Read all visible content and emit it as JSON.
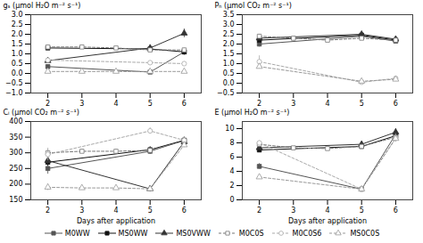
{
  "chart_data": [
    {
      "type": "line",
      "y_label": "gₛ (µmol H₂O m⁻² s⁻¹)",
      "x": [
        2,
        3,
        4,
        5,
        6
      ],
      "xlim": [
        1.5,
        6.5
      ],
      "xticks": [
        2,
        3,
        4,
        5,
        6
      ],
      "ylim": [
        -1.0,
        3.0
      ],
      "yticks": [
        {
          "value": -1.0,
          "label": "−1.0"
        },
        {
          "value": -0.5,
          "label": "−0.5"
        },
        {
          "value": 0.0,
          "label": "0.0"
        },
        {
          "value": 0.5,
          "label": "0.5"
        },
        {
          "value": 1.0,
          "label": "1.0"
        },
        {
          "value": 1.5,
          "label": "1.5"
        },
        {
          "value": 2.0,
          "label": "2.0"
        },
        {
          "value": 2.5,
          "label": "2.5"
        },
        {
          "value": 3.0,
          "label": "3.0"
        }
      ],
      "grid": false,
      "legend": "bottom",
      "series": [
        {
          "name": "M0WW",
          "color": "#555555",
          "marker": "square",
          "line_style": "solid",
          "values": [
            0.35,
            null,
            null,
            0.07,
            1.1
          ],
          "yerr": [
            0.08,
            null,
            null,
            0.05,
            0.18
          ]
        },
        {
          "name": "MS0WW",
          "color": "#111111",
          "marker": "square",
          "line_style": "solid",
          "values": [
            1.3,
            null,
            null,
            1.25,
            1.1
          ],
          "yerr": [
            0.08,
            null,
            null,
            0.08,
            0.12
          ]
        },
        {
          "name": "MS0VWW",
          "color": "#333333",
          "marker": "triangle",
          "line_style": "solid",
          "values": [
            0.65,
            null,
            null,
            1.3,
            2.05
          ],
          "yerr": [
            0.08,
            null,
            null,
            0.1,
            0.22
          ]
        },
        {
          "name": "M0C0S",
          "color": "#777777",
          "marker": "open-square",
          "line_style": "dashed",
          "values": [
            1.35,
            1.35,
            1.3,
            1.2,
            1.2
          ],
          "yerr": [
            0.08,
            0.05,
            0.05,
            0.08,
            0.08
          ]
        },
        {
          "name": "M0C0S6",
          "color": "#aaaaaa",
          "marker": "open-circle",
          "line_style": "dashed",
          "values": [
            0.68,
            null,
            null,
            0.55,
            0.5
          ],
          "yerr": [
            0.08,
            null,
            null,
            0.08,
            0.1
          ]
        },
        {
          "name": "MS0C0S",
          "color": "#999999",
          "marker": "open-triangle",
          "line_style": "dashed",
          "values": [
            0.1,
            0.1,
            0.1,
            0.1,
            0.1
          ],
          "yerr": [
            0.03,
            0.02,
            0.02,
            0.02,
            0.02
          ]
        }
      ]
    },
    {
      "type": "line",
      "y_label": "Pₙ (µmol CO₂ m⁻² s⁻¹)",
      "x": [
        2,
        3,
        4,
        5,
        6
      ],
      "xlim": [
        1.5,
        6.5
      ],
      "xticks": [
        2,
        3,
        4,
        5,
        6
      ],
      "ylim": [
        -0.5,
        3.5
      ],
      "yticks": [
        {
          "value": -0.5,
          "label": "−0.5"
        },
        {
          "value": 0.0,
          "label": "0.0"
        },
        {
          "value": 0.5,
          "label": "0.5"
        },
        {
          "value": 1.0,
          "label": "1.0"
        },
        {
          "value": 1.5,
          "label": "1.5"
        },
        {
          "value": 2.0,
          "label": "2.0"
        },
        {
          "value": 2.5,
          "label": "2.5"
        },
        {
          "value": 3.0,
          "label": "3.0"
        },
        {
          "value": 3.5,
          "label": "3.5"
        }
      ],
      "grid": false,
      "series": [
        {
          "name": "M0WW",
          "color": "#555555",
          "marker": "square",
          "line_style": "solid",
          "values": [
            2.0,
            null,
            null,
            2.4,
            2.15
          ],
          "yerr": [
            0.15,
            null,
            null,
            0.12,
            0.12
          ]
        },
        {
          "name": "MS0WW",
          "color": "#111111",
          "marker": "square",
          "line_style": "solid",
          "values": [
            2.2,
            null,
            null,
            2.45,
            2.2
          ],
          "yerr": [
            0.1,
            null,
            null,
            0.1,
            0.1
          ]
        },
        {
          "name": "MS0VWW",
          "color": "#333333",
          "marker": "triangle",
          "line_style": "solid",
          "values": [
            2.3,
            null,
            null,
            2.5,
            2.25
          ],
          "yerr": [
            0.1,
            null,
            null,
            0.1,
            0.1
          ]
        },
        {
          "name": "M0C0S",
          "color": "#777777",
          "marker": "open-square",
          "line_style": "dashed",
          "values": [
            2.4,
            2.3,
            2.2,
            2.3,
            2.2
          ],
          "yerr": [
            0.1,
            0.08,
            0.08,
            0.1,
            0.1
          ]
        },
        {
          "name": "M0C0S6",
          "color": "#aaaaaa",
          "marker": "open-circle",
          "line_style": "dashed",
          "values": [
            1.1,
            null,
            null,
            0.05,
            0.25
          ],
          "yerr": [
            0.3,
            null,
            null,
            0.1,
            0.1
          ]
        },
        {
          "name": "MS0C0S",
          "color": "#999999",
          "marker": "open-triangle",
          "line_style": "dashed",
          "values": [
            0.85,
            null,
            null,
            0.1,
            0.2
          ],
          "yerr": [
            0.1,
            null,
            null,
            0.1,
            0.1
          ]
        }
      ]
    },
    {
      "type": "line",
      "y_label": "Cᵢ (µmol CO₂ m⁻² s⁻¹)",
      "x_label": "Days after application",
      "x": [
        2,
        3,
        4,
        5,
        6
      ],
      "xlim": [
        1.5,
        6.5
      ],
      "xticks": [
        2,
        3,
        4,
        5,
        6
      ],
      "ylim": [
        150,
        400
      ],
      "yticks": [
        150,
        200,
        250,
        300,
        350,
        400
      ],
      "grid": false,
      "series": [
        {
          "name": "M0WW",
          "color": "#555555",
          "marker": "square",
          "line_style": "solid",
          "values": [
            250,
            null,
            null,
            305,
            340
          ],
          "yerr": [
            18,
            null,
            null,
            10,
            10
          ]
        },
        {
          "name": "MS0WW",
          "color": "#111111",
          "marker": "square",
          "line_style": "solid",
          "values": [
            270,
            null,
            null,
            310,
            340
          ],
          "yerr": [
            12,
            null,
            null,
            10,
            10
          ]
        },
        {
          "name": "MS0VWW",
          "color": "#333333",
          "marker": "triangle",
          "line_style": "solid",
          "values": [
            275,
            null,
            null,
            185,
            335
          ],
          "yerr": [
            12,
            null,
            null,
            10,
            12
          ]
        },
        {
          "name": "M0C0S",
          "color": "#777777",
          "marker": "open-square",
          "line_style": "dashed",
          "values": [
            300,
            305,
            305,
            308,
            338
          ],
          "yerr": [
            10,
            6,
            6,
            8,
            8
          ]
        },
        {
          "name": "M0C0S6",
          "color": "#aaaaaa",
          "marker": "open-circle",
          "line_style": "dashed",
          "values": [
            295,
            null,
            null,
            370,
            340
          ],
          "yerr": [
            20,
            null,
            null,
            10,
            10
          ]
        },
        {
          "name": "MS0C0S",
          "color": "#999999",
          "marker": "open-triangle",
          "line_style": "dashed",
          "values": [
            190,
            188,
            188,
            185,
            325
          ],
          "yerr": [
            10,
            5,
            5,
            8,
            8
          ]
        }
      ]
    },
    {
      "type": "line",
      "y_label": "E (µmol H₂O m⁻² s⁻¹)",
      "x_label": "Days after application",
      "x": [
        2,
        3,
        4,
        5,
        6
      ],
      "xlim": [
        1.5,
        6.5
      ],
      "xticks": [
        2,
        3,
        4,
        5,
        6
      ],
      "ylim": [
        0,
        11
      ],
      "yticks": [
        0,
        2,
        4,
        6,
        8,
        10
      ],
      "grid": false,
      "series": [
        {
          "name": "M0WW",
          "color": "#555555",
          "marker": "square",
          "line_style": "solid",
          "values": [
            4.7,
            null,
            null,
            1.5,
            9.2
          ],
          "yerr": [
            0.4,
            null,
            null,
            0.3,
            0.5
          ]
        },
        {
          "name": "MS0WW",
          "color": "#111111",
          "marker": "square",
          "line_style": "solid",
          "values": [
            7.0,
            null,
            null,
            7.5,
            9.0
          ],
          "yerr": [
            0.3,
            null,
            null,
            0.3,
            0.5
          ]
        },
        {
          "name": "MS0VWW",
          "color": "#333333",
          "marker": "triangle",
          "line_style": "solid",
          "values": [
            7.3,
            null,
            null,
            7.8,
            9.5
          ],
          "yerr": [
            0.3,
            null,
            null,
            0.3,
            0.5
          ]
        },
        {
          "name": "M0C0S",
          "color": "#777777",
          "marker": "open-square",
          "line_style": "dashed",
          "values": [
            7.8,
            7.3,
            7.2,
            7.5,
            8.8
          ],
          "yerr": [
            0.3,
            0.2,
            0.2,
            0.3,
            0.5
          ]
        },
        {
          "name": "M0C0S6",
          "color": "#aaaaaa",
          "marker": "open-circle",
          "line_style": "dashed",
          "values": [
            8.0,
            null,
            null,
            1.5,
            8.7
          ],
          "yerr": [
            0.3,
            null,
            null,
            0.3,
            0.5
          ]
        },
        {
          "name": "MS0C0S",
          "color": "#999999",
          "marker": "open-triangle",
          "line_style": "dashed",
          "values": [
            3.2,
            null,
            null,
            1.5,
            8.6
          ],
          "yerr": [
            0.3,
            null,
            null,
            0.3,
            0.5
          ]
        }
      ]
    }
  ]
}
